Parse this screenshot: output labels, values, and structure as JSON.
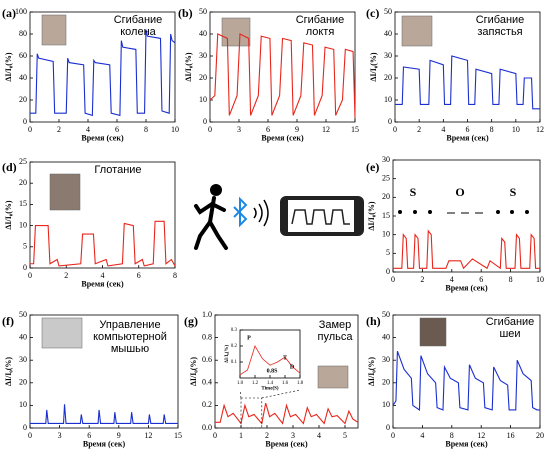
{
  "chart_data": [
    {
      "type": "line",
      "panel": "(a)",
      "title": [
        "Сгибание",
        "колена"
      ],
      "x_label": "Время (сек)",
      "y_label": "ΔI/I₀(%)",
      "xlim": [
        0,
        10
      ],
      "ylim": [
        0,
        100
      ],
      "xticks": [
        0,
        2,
        4,
        6,
        8,
        10
      ],
      "yticks": [
        0,
        20,
        40,
        60,
        80,
        100
      ],
      "color": "#1a2fd0",
      "x": [
        0,
        0.4,
        0.5,
        0.6,
        1.6,
        1.7,
        2.5,
        2.6,
        2.7,
        3.7,
        3.8,
        4.3,
        4.4,
        4.5,
        5.5,
        5.6,
        6.2,
        6.3,
        6.4,
        7.3,
        7.4,
        7.9,
        8.0,
        8.1,
        9.0,
        9.1,
        9.6,
        9.7,
        9.8,
        10
      ],
      "values": [
        8,
        8,
        62,
        58,
        55,
        8,
        8,
        58,
        54,
        52,
        8,
        6,
        56,
        54,
        52,
        8,
        6,
        74,
        68,
        66,
        8,
        8,
        84,
        78,
        76,
        10,
        8,
        80,
        74,
        72
      ]
    },
    {
      "type": "line",
      "panel": "(b)",
      "title": [
        "Сгибание",
        "локтя"
      ],
      "x_label": "Время (сек)",
      "y_label": "ΔI/I₀(%)",
      "xlim": [
        0,
        15
      ],
      "ylim": [
        0,
        50
      ],
      "xticks": [
        0,
        3,
        6,
        9,
        12,
        15
      ],
      "yticks": [
        0,
        10,
        20,
        30,
        40,
        50
      ],
      "color": "#e8261c",
      "x": [
        0,
        0.5,
        0.8,
        1.8,
        2.0,
        2.8,
        3.1,
        4.0,
        4.2,
        5.0,
        5.3,
        6.2,
        6.4,
        7.2,
        7.5,
        8.4,
        8.6,
        9.4,
        9.7,
        10.6,
        10.8,
        11.6,
        11.9,
        12.8,
        13.0,
        13.7,
        14.0,
        14.8,
        15
      ],
      "values": [
        10,
        12,
        40,
        38,
        3,
        12,
        40,
        38,
        3,
        12,
        39,
        38,
        3,
        12,
        38,
        37,
        3,
        12,
        36,
        35,
        3,
        12,
        34,
        33,
        3,
        10,
        33,
        32,
        2
      ]
    },
    {
      "type": "line",
      "panel": "(c)",
      "title": [
        "Сгибание",
        "запястья"
      ],
      "x_label": "Время (сек)",
      "y_label": "ΔI/I₀(%)",
      "xlim": [
        0,
        12
      ],
      "ylim": [
        0,
        50
      ],
      "xticks": [
        0,
        2,
        4,
        6,
        8,
        10,
        12
      ],
      "yticks": [
        0,
        10,
        20,
        30,
        40,
        50
      ],
      "color": "#1a2fd0",
      "x": [
        0,
        0.6,
        0.7,
        2.0,
        2.1,
        2.8,
        2.9,
        4.0,
        4.1,
        4.6,
        4.7,
        6.0,
        6.1,
        6.6,
        6.7,
        8.0,
        8.1,
        8.6,
        8.7,
        10.0,
        10.1,
        10.6,
        10.7,
        11.3,
        11.4,
        12
      ],
      "values": [
        8,
        8,
        25,
        24,
        8,
        8,
        28,
        26,
        8,
        8,
        30,
        28,
        8,
        8,
        24,
        22,
        8,
        8,
        24,
        22,
        8,
        8,
        20,
        20,
        6,
        6
      ]
    },
    {
      "type": "line",
      "panel": "(d)",
      "title": [
        "Глотание"
      ],
      "x_label": "Время (сек)",
      "y_label": "ΔI/I₀(%)",
      "xlim": [
        0,
        8
      ],
      "ylim": [
        0,
        25
      ],
      "xticks": [
        0,
        2,
        4,
        6,
        8
      ],
      "yticks": [
        0,
        5,
        10,
        15,
        20,
        25
      ],
      "color": "#e8261c",
      "x": [
        0,
        0.2,
        0.3,
        1.0,
        1.1,
        1.5,
        1.6,
        2.8,
        2.9,
        3.5,
        3.6,
        4.2,
        4.3,
        5.1,
        5.2,
        5.7,
        5.8,
        6.2,
        6.3,
        6.8,
        6.9,
        7.4,
        7.5,
        7.8,
        8
      ],
      "values": [
        1,
        1,
        10,
        10,
        1,
        2,
        0.5,
        1,
        8,
        8,
        1,
        2,
        0.5,
        1,
        10.5,
        10,
        1,
        2,
        0.5,
        1,
        11,
        11,
        1,
        2,
        0.5
      ]
    },
    {
      "type": "line",
      "panel": "(e)",
      "annotations": [
        "S",
        "O",
        "S"
      ],
      "x_label": "Время (сек)",
      "y_label": "ΔI/I₀(%)",
      "xlim": [
        0,
        10
      ],
      "ylim": [
        0,
        30
      ],
      "xticks": [
        0,
        2,
        4,
        6,
        8,
        10
      ],
      "yticks": [
        0,
        5,
        10,
        15,
        20,
        25,
        30
      ],
      "color": "#e8261c",
      "x": [
        0,
        0.6,
        0.7,
        0.9,
        1.0,
        1.4,
        1.5,
        1.7,
        1.8,
        2.3,
        2.4,
        2.6,
        2.7,
        3.6,
        3.8,
        4.6,
        4.8,
        5.4,
        5.6,
        6.4,
        6.6,
        7.3,
        7.4,
        7.6,
        7.7,
        8.3,
        8.4,
        8.6,
        8.7,
        9.3,
        9.4,
        9.6,
        9.7,
        10
      ],
      "values": [
        1,
        1,
        10,
        9,
        1,
        1,
        10,
        9,
        1,
        1,
        11,
        10,
        1,
        1,
        3,
        3,
        1,
        3.5,
        3,
        1,
        3,
        1,
        9,
        8,
        1,
        1,
        10,
        9,
        1,
        1,
        10,
        9,
        1,
        1
      ]
    },
    {
      "type": "line",
      "panel": "(f)",
      "title": [
        "Управление",
        "компьютерной",
        "мышью"
      ],
      "x_label": "Время (сек)",
      "y_label": "ΔI/I₀(%)",
      "xlim": [
        0,
        15
      ],
      "ylim": [
        0,
        50
      ],
      "xticks": [
        0,
        3,
        6,
        9,
        12,
        15
      ],
      "yticks": [
        0,
        10,
        20,
        30,
        40,
        50
      ],
      "color": "#1a2fd0",
      "x": [
        0,
        1.6,
        1.7,
        1.85,
        3.4,
        3.5,
        3.65,
        5.1,
        5.2,
        5.35,
        6.9,
        7.0,
        7.15,
        8.5,
        8.6,
        8.75,
        10.2,
        10.3,
        10.45,
        12.0,
        12.1,
        12.25,
        13.5,
        13.6,
        13.75,
        15
      ],
      "values": [
        2,
        2,
        8,
        2,
        2,
        10.5,
        2,
        2,
        6,
        2,
        2,
        8,
        2,
        2,
        7,
        2,
        2,
        7,
        2,
        2,
        6,
        2,
        2,
        6,
        2,
        2
      ]
    },
    {
      "type": "line",
      "panel": "(g)",
      "title": [
        "Замер",
        "пульса"
      ],
      "x_label": "Время (сек)",
      "y_label": "ΔI/I₀(%)",
      "xlim": [
        0,
        5.5
      ],
      "ylim": [
        0,
        1
      ],
      "xticks": [
        0,
        1,
        2,
        3,
        4,
        5
      ],
      "yticks": [
        {
          "value": 0,
          "label": "0.0"
        },
        0.2,
        0.4,
        0.6,
        0.8,
        {
          "value": 1,
          "label": "1.0"
        }
      ],
      "color": "#e8261c",
      "x": [
        0,
        0.2,
        0.35,
        0.5,
        0.7,
        1.0,
        1.15,
        1.3,
        1.5,
        1.8,
        1.95,
        2.1,
        2.3,
        2.6,
        2.75,
        2.9,
        3.1,
        3.4,
        3.55,
        3.7,
        3.9,
        4.2,
        4.35,
        4.5,
        4.7,
        5.0,
        5.15,
        5.3,
        5.5
      ],
      "values": [
        0.05,
        0.05,
        0.2,
        0.1,
        0.13,
        0.04,
        0.2,
        0.1,
        0.12,
        0.04,
        0.22,
        0.1,
        0.13,
        0.04,
        0.2,
        0.1,
        0.12,
        0.04,
        0.18,
        0.1,
        0.12,
        0.04,
        0.17,
        0.1,
        0.11,
        0.04,
        0.15,
        0.08,
        0.05
      ],
      "inset": {
        "x_label": "Time(S)",
        "y_label": "ΔI/I₀(%)",
        "annotations": [
          "P",
          "T",
          "D",
          "0.8S"
        ],
        "xlim": [
          1.0,
          1.8
        ],
        "ylim": [
          0,
          0.3
        ],
        "xticks": [
          {
            "value": 1,
            "label": "1.0"
          },
          1.2,
          1.4,
          1.6,
          1.8
        ],
        "yticks": [
          0.1,
          0.2,
          0.3
        ],
        "color": "#e8261c",
        "x": [
          1.0,
          1.1,
          1.2,
          1.3,
          1.4,
          1.5,
          1.6,
          1.7,
          1.8
        ],
        "values": [
          0.02,
          0.05,
          0.2,
          0.12,
          0.08,
          0.1,
          0.13,
          0.07,
          0.03
        ]
      }
    },
    {
      "type": "line",
      "panel": "(h)",
      "title": [
        "Сгибание",
        "шеи"
      ],
      "x_label": "Время (сек)",
      "y_label": "ΔI/I₀(%)",
      "xlim": [
        0,
        20
      ],
      "ylim": [
        0,
        50
      ],
      "xticks": [
        0,
        4,
        8,
        12,
        16,
        20
      ],
      "yticks": [
        0,
        10,
        20,
        30,
        40,
        50
      ],
      "color": "#1a2fd0",
      "x": [
        0,
        0.4,
        0.6,
        1.5,
        2.5,
        2.7,
        3.6,
        3.8,
        4.7,
        5.8,
        6.0,
        6.8,
        7.0,
        7.8,
        8.9,
        9.1,
        10.2,
        10.4,
        11.2,
        12.3,
        12.5,
        13.5,
        13.7,
        14.6,
        15.6,
        15.8,
        16.7,
        16.9,
        17.7,
        18.8,
        19.0,
        19.6,
        20
      ],
      "values": [
        10,
        12,
        34,
        26,
        22,
        10,
        8,
        32,
        24,
        20,
        9,
        8,
        27,
        22,
        20,
        9,
        8,
        28,
        22,
        20,
        9,
        8,
        27,
        21,
        19,
        8,
        8,
        30,
        24,
        21,
        9,
        8,
        8
      ]
    }
  ]
}
